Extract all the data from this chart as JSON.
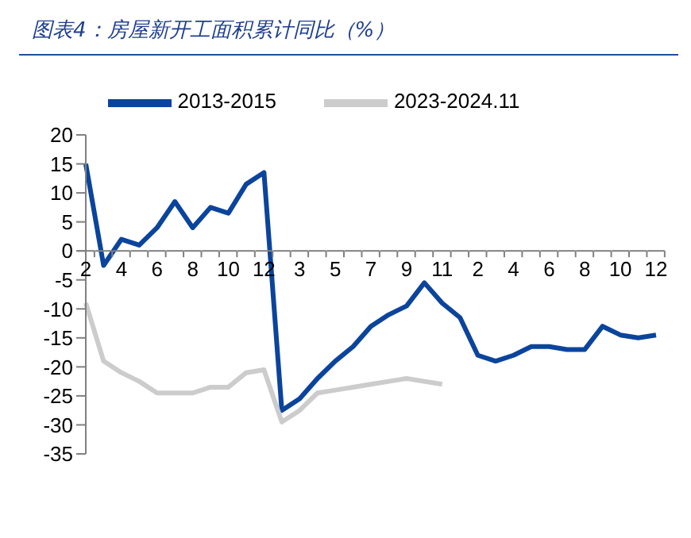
{
  "chart_data": {
    "type": "line",
    "title": "图表4：房屋新开工面积累计同比（%）",
    "categories": [
      "2",
      null,
      "4",
      null,
      "6",
      null,
      "8",
      null,
      "10",
      null,
      "12",
      null,
      "3",
      null,
      "5",
      null,
      "7",
      null,
      "9",
      null,
      "11",
      null,
      "2",
      null,
      "4",
      null,
      "6",
      null,
      "8",
      null,
      "10",
      null,
      "12"
    ],
    "series": [
      {
        "name": "2013-2015",
        "color": "#0b449c",
        "values": [
          15,
          -2.5,
          2,
          1,
          4,
          8.5,
          4,
          7.5,
          6.5,
          11.5,
          13.5,
          -27.5,
          -25.5,
          -22,
          -19,
          -16.5,
          -13,
          -11,
          -9.5,
          -5.5,
          -9,
          -11.5,
          -18,
          -19,
          -18,
          -16.5,
          -16.5,
          -17,
          -17,
          -13,
          -14.5,
          -15,
          -14.5
        ]
      },
      {
        "name": "2023-2024.11",
        "color": "#cccccc",
        "values": [
          -9,
          -19,
          -21,
          -22.5,
          -24.5,
          -24.5,
          -24.5,
          -23.5,
          -23.5,
          -21,
          -20.5,
          -29.5,
          -27.5,
          -24.5,
          -24,
          -23.5,
          -23,
          -22.5,
          -22,
          -22.5,
          -23,
          null,
          null,
          null,
          null,
          null,
          null,
          null,
          null,
          null,
          null,
          null,
          null
        ]
      }
    ],
    "ylim": [
      -35,
      20
    ],
    "yticks": [
      -35,
      -30,
      -25,
      -20,
      -15,
      -10,
      -5,
      0,
      5,
      10,
      15,
      20
    ],
    "grid": false,
    "legend": "top",
    "marker": "none",
    "line_style": "solid"
  }
}
